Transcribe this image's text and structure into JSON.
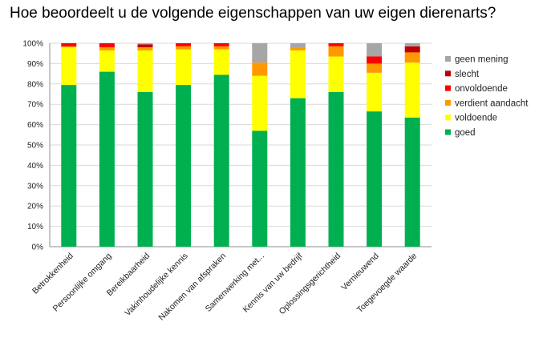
{
  "chart_data": {
    "type": "bar",
    "stacked": true,
    "title": "Hoe beoordeelt u de volgende eigenschappen van uw eigen dierenarts?",
    "xlabel": "",
    "ylabel": "",
    "ylim": [
      0,
      100
    ],
    "y_ticks": [
      "0%",
      "10%",
      "20%",
      "30%",
      "40%",
      "50%",
      "60%",
      "70%",
      "80%",
      "90%",
      "100%"
    ],
    "grid": true,
    "legend_position": "right",
    "categories": [
      "Betrokkenheid",
      "Persoonlijke omgang",
      "Bereikbaarheid",
      "Vakinhoudelijke kennis",
      "Nakomen van afspraken",
      "Samenwerking met...",
      "Kennis van uw bedrijf",
      "Oplossingsgerichtheid",
      "Vernieuwend",
      "Toegevoegde waarde"
    ],
    "series": [
      {
        "name": "goed",
        "color": "#00b050",
        "values": [
          79.5,
          86,
          76,
          79.5,
          84.5,
          57,
          73,
          76,
          66.5,
          63.5
        ]
      },
      {
        "name": "voldoende",
        "color": "#ffff00",
        "values": [
          18.5,
          10.5,
          20.5,
          17.5,
          12.5,
          27,
          23.5,
          17.5,
          19,
          27
        ]
      },
      {
        "name": "verdient aandacht",
        "color": "#ff9900",
        "values": [
          0.5,
          1.5,
          1.5,
          1.5,
          1.5,
          6.5,
          1.5,
          5,
          4.5,
          5
        ]
      },
      {
        "name": "onvoldoende",
        "color": "#ff0000",
        "values": [
          1.5,
          2,
          0,
          1.5,
          1.5,
          0,
          0,
          1.5,
          3.5,
          0
        ]
      },
      {
        "name": "slecht",
        "color": "#c00000",
        "values": [
          0,
          0,
          1.5,
          0,
          0,
          0,
          0,
          0,
          0,
          3
        ]
      },
      {
        "name": "geen mening",
        "color": "#a6a6a6",
        "values": [
          0,
          0,
          0.5,
          0,
          0,
          9.5,
          2,
          0,
          6.5,
          1.5
        ]
      }
    ]
  }
}
